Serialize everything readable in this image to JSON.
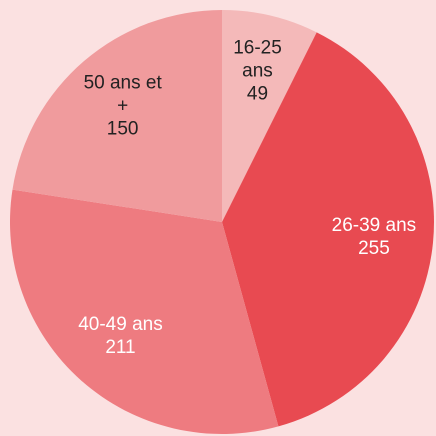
{
  "chart_data": {
    "type": "pie",
    "categories": [
      "16-25 ans",
      "26-39 ans",
      "40-49 ans",
      "50 ans et +"
    ],
    "values": [
      49,
      255,
      211,
      150
    ],
    "colors": [
      "#f4b9b9",
      "#e84a51",
      "#ee7b80",
      "#f09b9d"
    ],
    "label_colors": [
      "#222222",
      "#ffffff",
      "#ffffff",
      "#222222"
    ]
  }
}
